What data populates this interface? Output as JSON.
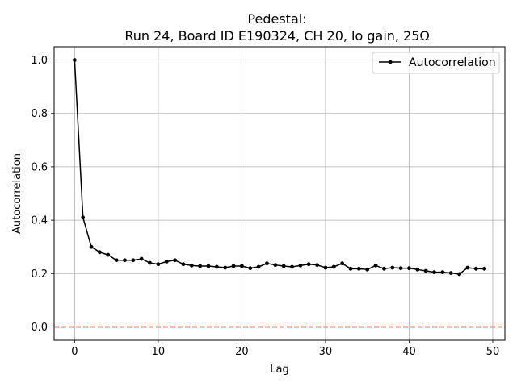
{
  "chart_data": {
    "type": "line",
    "title_line1": "Pedestal:",
    "title_line2": "Run 24, Board ID E190324, CH 20, lo gain, 25Ω",
    "xlabel": "Lag",
    "ylabel": "Autocorrelation",
    "xlim": [
      -2.45,
      51.45
    ],
    "ylim": [
      -0.05,
      1.05
    ],
    "xticks": [
      0,
      10,
      20,
      30,
      40,
      50
    ],
    "yticks": [
      0.0,
      0.2,
      0.4,
      0.6,
      0.8,
      1.0
    ],
    "xtick_labels": [
      "0",
      "10",
      "20",
      "30",
      "40",
      "50"
    ],
    "ytick_labels": [
      "0.0",
      "0.2",
      "0.4",
      "0.6",
      "0.8",
      "1.0"
    ],
    "grid": true,
    "legend_position": "top-right",
    "series": [
      {
        "name": "Autocorrelation",
        "color": "#000000",
        "marker": "point",
        "x": [
          0,
          1,
          2,
          3,
          4,
          5,
          6,
          7,
          8,
          9,
          10,
          11,
          12,
          13,
          14,
          15,
          16,
          17,
          18,
          19,
          20,
          21,
          22,
          23,
          24,
          25,
          26,
          27,
          28,
          29,
          30,
          31,
          32,
          33,
          34,
          35,
          36,
          37,
          38,
          39,
          40,
          41,
          42,
          43,
          44,
          45,
          46,
          47,
          48,
          49
        ],
        "y": [
          1.0,
          0.41,
          0.3,
          0.28,
          0.27,
          0.25,
          0.25,
          0.25,
          0.255,
          0.24,
          0.235,
          0.245,
          0.25,
          0.235,
          0.23,
          0.228,
          0.228,
          0.225,
          0.222,
          0.228,
          0.228,
          0.22,
          0.225,
          0.238,
          0.232,
          0.228,
          0.225,
          0.23,
          0.235,
          0.232,
          0.222,
          0.225,
          0.238,
          0.218,
          0.218,
          0.215,
          0.23,
          0.218,
          0.222,
          0.22,
          0.22,
          0.215,
          0.21,
          0.205,
          0.205,
          0.202,
          0.198,
          0.222,
          0.218,
          0.218
        ]
      }
    ],
    "reference_line": {
      "y": 0.0,
      "color": "#ff0000",
      "style": "dashed"
    }
  }
}
